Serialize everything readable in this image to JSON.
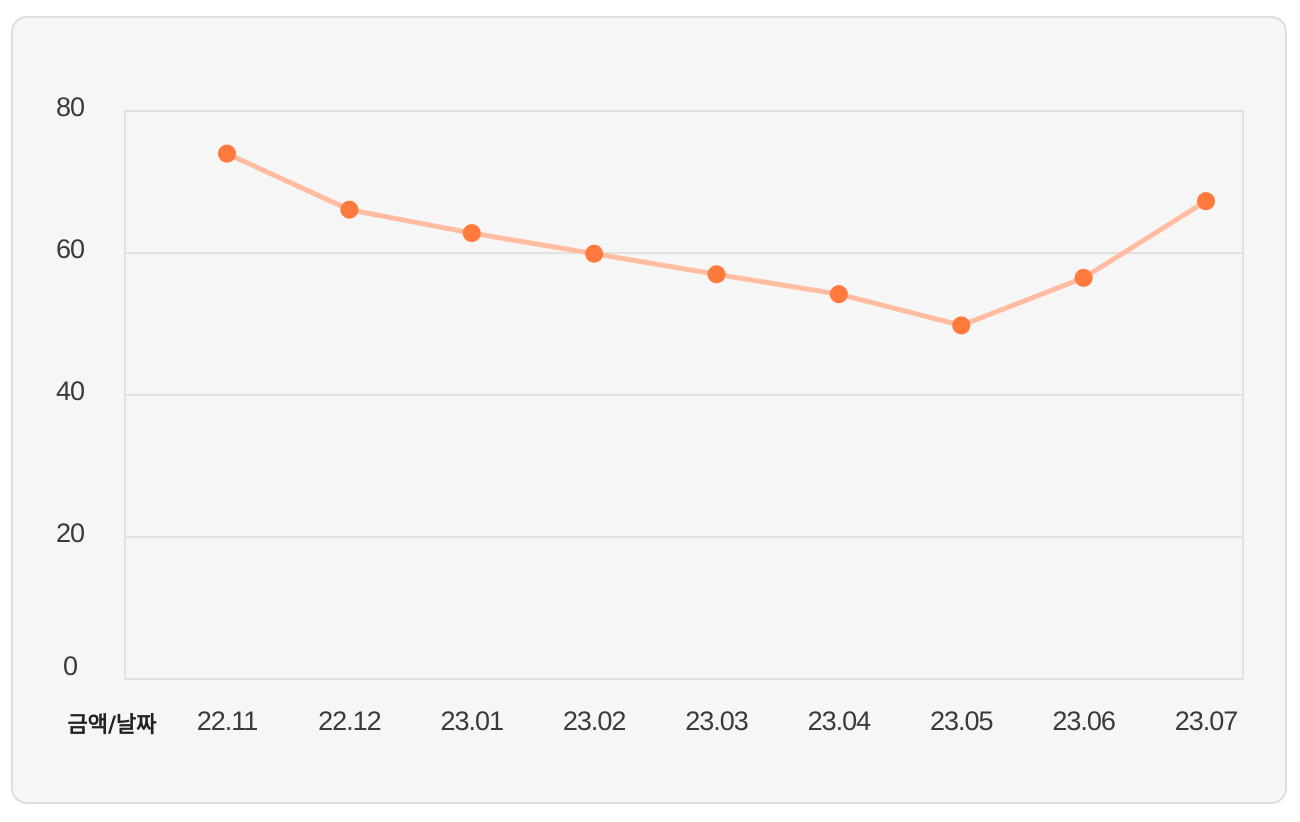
{
  "chart_data": {
    "type": "line",
    "corner_label": "금액/날짜",
    "categories": [
      "22.11",
      "22.12",
      "23.01",
      "23.02",
      "23.03",
      "23.04",
      "23.05",
      "23.06",
      "23.07"
    ],
    "series": [
      {
        "values": [
          74,
          66.1,
          62.8,
          59.9,
          57,
          54.2,
          49.8,
          56.5,
          67.3
        ]
      }
    ],
    "yticks": [
      0,
      20,
      40,
      60,
      80
    ],
    "ylim": [
      0,
      80
    ],
    "grid": true,
    "colors": {
      "line": "#ffbca0",
      "marker": "#ff7a3c",
      "grid": "#dcdcdc",
      "background": "#f6f6f6"
    }
  }
}
